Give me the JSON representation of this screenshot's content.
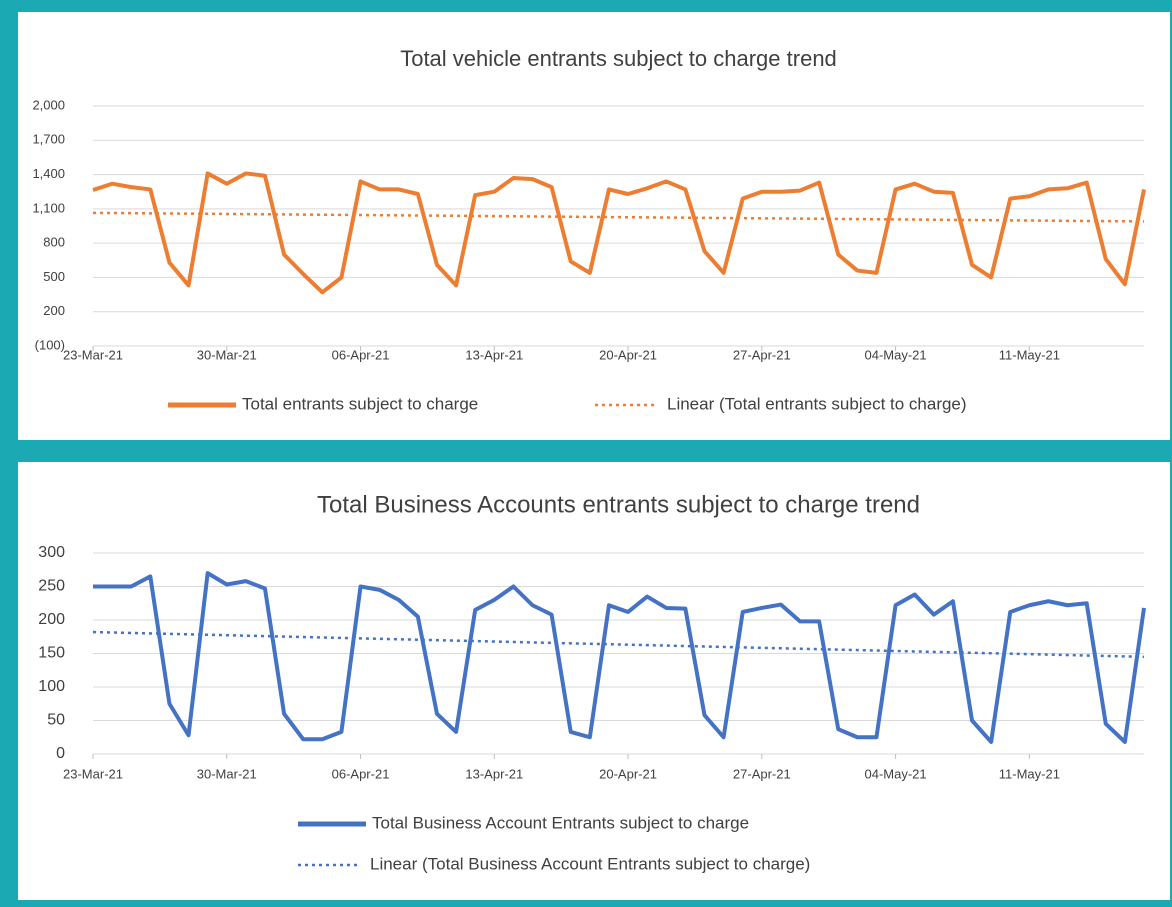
{
  "chart_data": [
    {
      "type": "line",
      "title": "Total vehicle entrants subject to charge trend",
      "categories": [
        "23-Mar-21",
        null,
        null,
        null,
        null,
        null,
        null,
        "30-Mar-21",
        null,
        null,
        null,
        null,
        null,
        null,
        "06-Apr-21",
        null,
        null,
        null,
        null,
        null,
        null,
        "13-Apr-21",
        null,
        null,
        null,
        null,
        null,
        null,
        "20-Apr-21",
        null,
        null,
        null,
        null,
        null,
        null,
        "27-Apr-21",
        null,
        null,
        null,
        null,
        null,
        null,
        "04-May-21",
        null,
        null,
        null,
        null,
        null,
        null,
        "11-May-21",
        null,
        null,
        null,
        null,
        null,
        null
      ],
      "series": [
        {
          "name": "Total entrants subject to charge",
          "color": "#ed7d31",
          "values": [
            1265,
            1320,
            1290,
            1270,
            630,
            430,
            1410,
            1320,
            1410,
            1390,
            700,
            530,
            370,
            500,
            1340,
            1270,
            1270,
            1230,
            610,
            430,
            1220,
            1250,
            1370,
            1360,
            1290,
            640,
            540,
            1270,
            1230,
            1280,
            1340,
            1270,
            730,
            540,
            1190,
            1250,
            1250,
            1260,
            1330,
            700,
            560,
            540,
            1270,
            1320,
            1250,
            1240,
            610,
            500,
            1190,
            1210,
            1270,
            1280,
            1330,
            660,
            440,
            1270
          ]
        }
      ],
      "trendline": {
        "name": "Linear (Total entrants subject to charge)",
        "color": "#ed7d31",
        "start": 1065,
        "end": 990
      },
      "ylim": [
        -100,
        2000
      ],
      "yticks": [
        {
          "value": -100,
          "label": "(100)"
        },
        200,
        500,
        800,
        {
          "value": 1100,
          "label": "1,100"
        },
        {
          "value": 1400,
          "label": "1,400"
        },
        {
          "value": 1700,
          "label": "1,700"
        },
        {
          "value": 2000,
          "label": "2,000"
        }
      ],
      "grid": true
    },
    {
      "type": "line",
      "title": "Total Business  Accounts entrants subject to charge trend",
      "categories": [
        "23-Mar-21",
        null,
        null,
        null,
        null,
        null,
        null,
        "30-Mar-21",
        null,
        null,
        null,
        null,
        null,
        null,
        "06-Apr-21",
        null,
        null,
        null,
        null,
        null,
        null,
        "13-Apr-21",
        null,
        null,
        null,
        null,
        null,
        null,
        "20-Apr-21",
        null,
        null,
        null,
        null,
        null,
        null,
        "27-Apr-21",
        null,
        null,
        null,
        null,
        null,
        null,
        "04-May-21",
        null,
        null,
        null,
        null,
        null,
        null,
        "11-May-21",
        null,
        null,
        null,
        null,
        null,
        null
      ],
      "series": [
        {
          "name": "Total Business Account Entrants subject to charge",
          "color": "#4472c4",
          "values": [
            250,
            250,
            250,
            265,
            75,
            28,
            270,
            253,
            258,
            247,
            60,
            22,
            22,
            33,
            250,
            245,
            230,
            205,
            60,
            33,
            215,
            230,
            250,
            222,
            208,
            33,
            25,
            222,
            212,
            235,
            218,
            217,
            58,
            25,
            212,
            218,
            223,
            198,
            198,
            37,
            25,
            25,
            222,
            238,
            208,
            228,
            50,
            18,
            212,
            222,
            228,
            222,
            225,
            45,
            18,
            218
          ]
        }
      ],
      "trendline": {
        "name": "Linear (Total Business Account Entrants subject to charge)",
        "color": "#4472c4",
        "start": 182,
        "end": 145
      },
      "ylim": [
        0,
        300
      ],
      "yticks": [
        0,
        50,
        100,
        150,
        200,
        250,
        300
      ],
      "grid": true
    }
  ]
}
